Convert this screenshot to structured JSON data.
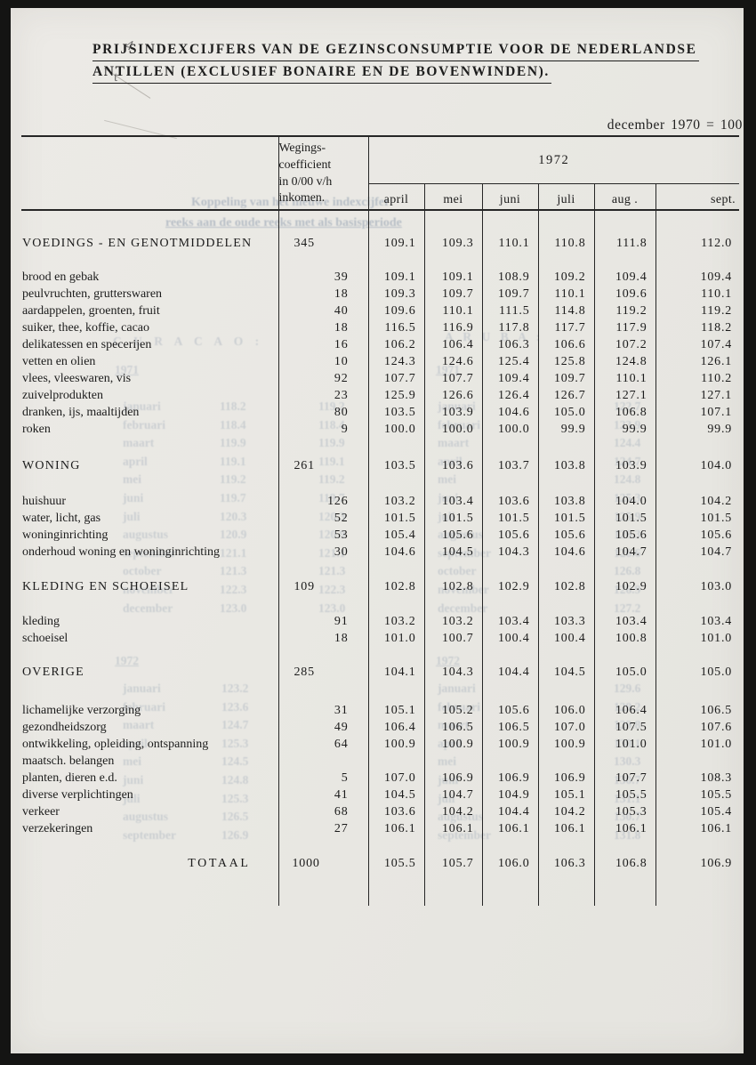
{
  "title": {
    "line1": "PRIJSINDEXCIJFERS VAN DE GEZINSCONSUMPTIE VOOR DE NEDERLANDSE",
    "line2": "ANTILLEN (EXCLUSIEF BONAIRE EN DE BOVENWINDEN)."
  },
  "base_note": "december 1970 = 100",
  "table": {
    "weight_header": "Wegings-\ncoefficient\nin 0/00 v/h\ninkomen.",
    "year": "1972",
    "months": [
      "april",
      "mei",
      "juni",
      "juli",
      "aug .",
      "sept."
    ],
    "rows": [
      {
        "type": "spacer"
      },
      {
        "type": "section",
        "label": "VOEDINGS - EN GENOTMIDDELEN",
        "weight": "345",
        "values": [
          "109.1",
          "109.3",
          "110.1",
          "110.8",
          "111.8",
          "112.0"
        ]
      },
      {
        "type": "spacer"
      },
      {
        "type": "item",
        "label": "brood en gebak",
        "weight": "39",
        "values": [
          "109.1",
          "109.1",
          "108.9",
          "109.2",
          "109.4",
          "109.4"
        ]
      },
      {
        "type": "item",
        "label": "peulvruchten, grutterswaren",
        "weight": "18",
        "values": [
          "109.3",
          "109.7",
          "109.7",
          "110.1",
          "109.6",
          "110.1"
        ]
      },
      {
        "type": "item",
        "label": "aardappelen, groenten, fruit",
        "weight": "40",
        "values": [
          "109.6",
          "110.1",
          "111.5",
          "114.8",
          "119.2",
          "119.2"
        ]
      },
      {
        "type": "item",
        "label": "suiker, thee, koffie, cacao",
        "weight": "18",
        "values": [
          "116.5",
          "116.9",
          "117.8",
          "117.7",
          "117.9",
          "118.2"
        ]
      },
      {
        "type": "item",
        "label": "delikatessen en specerijen",
        "weight": "16",
        "values": [
          "106.2",
          "106.4",
          "106.3",
          "106.6",
          "107.2",
          "107.4"
        ]
      },
      {
        "type": "item",
        "label": "vetten en olien",
        "weight": "10",
        "values": [
          "124.3",
          "124.6",
          "125.4",
          "125.8",
          "124.8",
          "126.1"
        ]
      },
      {
        "type": "item",
        "label": "vlees, vleeswaren, vis",
        "weight": "92",
        "values": [
          "107.7",
          "107.7",
          "109.4",
          "109.7",
          "110.1",
          "110.2"
        ]
      },
      {
        "type": "item",
        "label": "zuivelprodukten",
        "weight": "23",
        "values": [
          "125.9",
          "126.6",
          "126.4",
          "126.7",
          "127.1",
          "127.1"
        ]
      },
      {
        "type": "item",
        "label": "dranken, ijs, maaltijden",
        "weight": "80",
        "values": [
          "103.5",
          "103.9",
          "104.6",
          "105.0",
          "106.8",
          "107.1"
        ]
      },
      {
        "type": "item",
        "label": "roken",
        "weight": "9",
        "values": [
          "100.0",
          "100.0",
          "100.0",
          "99.9",
          "99.9",
          "99.9"
        ]
      },
      {
        "type": "spacer"
      },
      {
        "type": "section",
        "label": "WONING",
        "weight": "261",
        "values": [
          "103.5",
          "103.6",
          "103.7",
          "103.8",
          "103.9",
          "104.0"
        ]
      },
      {
        "type": "spacer"
      },
      {
        "type": "item",
        "label": "huishuur",
        "weight": "126",
        "values": [
          "103.2",
          "103.4",
          "103.6",
          "103.8",
          "104.0",
          "104.2"
        ]
      },
      {
        "type": "item",
        "label": "water, licht, gas",
        "weight": "52",
        "values": [
          "101.5",
          "101.5",
          "101.5",
          "101.5",
          "101.5",
          "101.5"
        ]
      },
      {
        "type": "item",
        "label": "woninginrichting",
        "weight": "53",
        "values": [
          "105.4",
          "105.6",
          "105.6",
          "105.6",
          "105.6",
          "105.6"
        ]
      },
      {
        "type": "item",
        "label": "onderhoud woning en woninginrichting",
        "weight": "30",
        "values": [
          "104.6",
          "104.5",
          "104.3",
          "104.6",
          "104.7",
          "104.7"
        ]
      },
      {
        "type": "spacer"
      },
      {
        "type": "section",
        "label": "KLEDING EN SCHOEISEL",
        "weight": "109",
        "values": [
          "102.8",
          "102.8",
          "102.9",
          "102.8",
          "102.9",
          "103.0"
        ]
      },
      {
        "type": "spacer"
      },
      {
        "type": "item",
        "label": "kleding",
        "weight": "91",
        "values": [
          "103.2",
          "103.2",
          "103.4",
          "103.3",
          "103.4",
          "103.4"
        ]
      },
      {
        "type": "item",
        "label": "schoeisel",
        "weight": "18",
        "values": [
          "101.0",
          "100.7",
          "100.4",
          "100.4",
          "100.8",
          "101.0"
        ]
      },
      {
        "type": "spacer"
      },
      {
        "type": "section",
        "label": "OVERIGE",
        "weight": "285",
        "values": [
          "104.1",
          "104.3",
          "104.4",
          "104.5",
          "105.0",
          "105.0"
        ]
      },
      {
        "type": "spacer"
      },
      {
        "type": "item",
        "label": "lichamelijke verzorging",
        "weight": "31",
        "values": [
          "105.1",
          "105.2",
          "105.6",
          "106.0",
          "106.4",
          "106.5"
        ]
      },
      {
        "type": "item",
        "label": "gezondheidszorg",
        "weight": "49",
        "values": [
          "106.4",
          "106.5",
          "106.5",
          "107.0",
          "107.5",
          "107.6"
        ]
      },
      {
        "type": "item",
        "label": "ontwikkeling, opleiding, ontspanning",
        "weight": "64",
        "values": [
          "100.9",
          "100.9",
          "100.9",
          "100.9",
          "101.0",
          "101.0"
        ]
      },
      {
        "type": "cont",
        "label": "maatsch. belangen"
      },
      {
        "type": "item",
        "label": "planten, dieren e.d.",
        "weight": "5",
        "values": [
          "107.0",
          "106.9",
          "106.9",
          "106.9",
          "107.7",
          "108.3"
        ]
      },
      {
        "type": "item",
        "label": "diverse verplichtingen",
        "weight": "41",
        "values": [
          "104.5",
          "104.7",
          "104.9",
          "105.1",
          "105.5",
          "105.5"
        ]
      },
      {
        "type": "item",
        "label": "verkeer",
        "weight": "68",
        "values": [
          "103.6",
          "104.2",
          "104.4",
          "104.2",
          "105.3",
          "105.4"
        ]
      },
      {
        "type": "item",
        "label": "verzekeringen",
        "weight": "27",
        "values": [
          "106.1",
          "106.1",
          "106.1",
          "106.1",
          "106.1",
          "106.1"
        ]
      },
      {
        "type": "spacer"
      },
      {
        "type": "total",
        "label": "TOTAAL",
        "weight": "1000",
        "values": [
          "105.5",
          "105.7",
          "106.0",
          "106.3",
          "106.8",
          "106.9"
        ]
      },
      {
        "type": "tail"
      }
    ]
  },
  "handwriting": {
    "mark1": "4",
    "mark2": "t"
  },
  "bleedthrough": {
    "fragments": [
      "Koppeling van het nieuwe indexcijfer",
      "reeks aan de oude reeks met als basisperiode",
      "C U R A C A O :",
      "A R U B A :",
      "1971",
      "1971",
      "januari\nfebruari\nmaart\napril\nmei\njuni\njuli\naugustus\nseptember\noctober\nnovember\ndecember",
      "118.2\n118.4\n119.9\n119.1\n119.2\n119.7\n120.3\n120.9\n121.1\n121.3\n122.3\n123.0",
      "119.2\n118.4\n119.9\n119.1\n119.2\n119.7\n120.3\n120.9\n121.1\n121.3\n122.3\n123.0",
      "januari\nfebruari\nmaart\napril\nmei\njuni\njuli\naugustus\nseptember\noctober\nnovember\ndecember",
      "122.7\n123.9\n124.4\n124.7\n124.8\n125.3\n125.9\n126.3\n126.6\n126.8\n126.9\n127.2",
      "1972",
      "1972",
      "januari\nfebruari\nmaart\napril\nmei\njuni\njuli\naugustus\nseptember",
      "123.2\n123.6\n124.7\n125.3\n124.5\n124.8\n125.3\n126.5\n126.9",
      "januari\nfebruari\nmaart\napril\nmei\njuni\njuli\naugustus\nseptember",
      "129.6\n129.2\n129.8\n130.1\n130.3\n130.7\n131.1\n130.7\n131.8"
    ]
  }
}
